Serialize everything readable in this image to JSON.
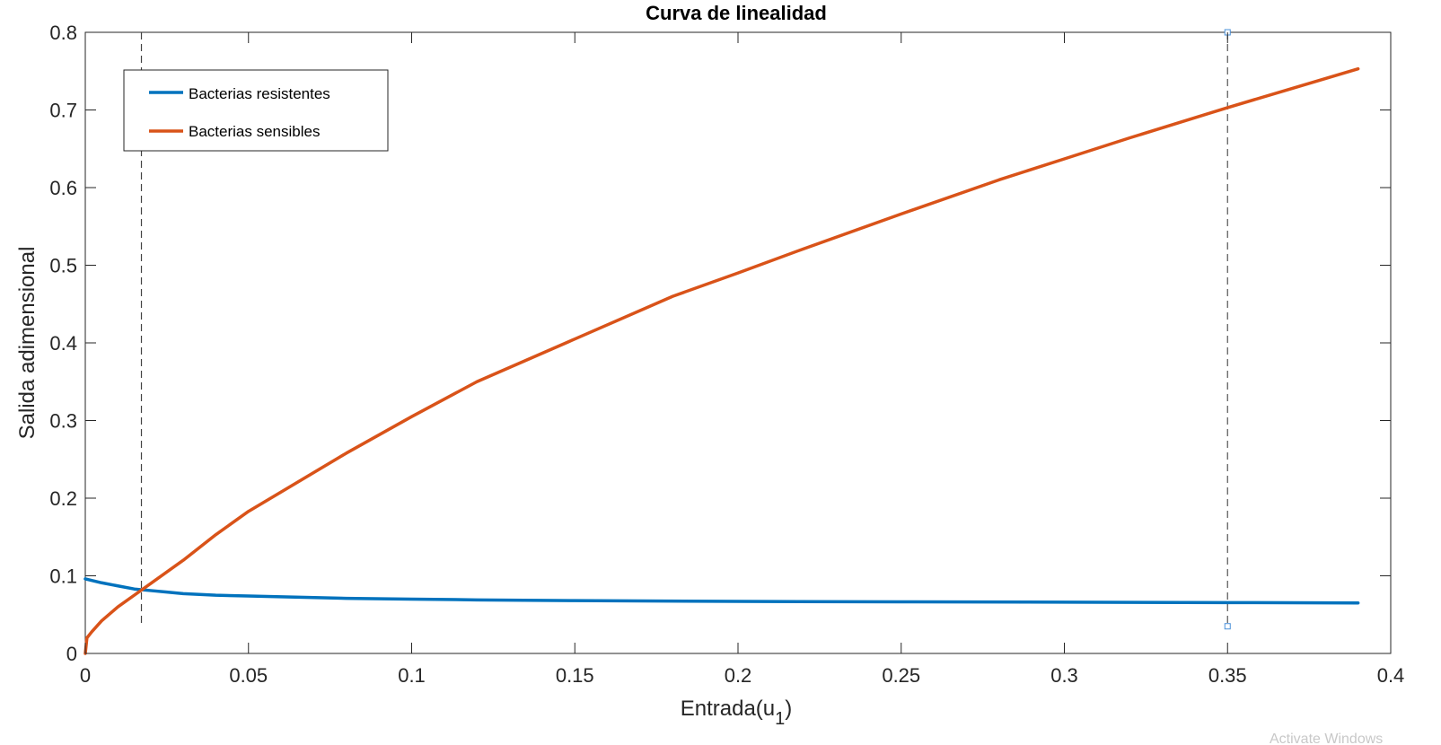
{
  "chart_data": {
    "type": "line",
    "title": "Curva de linealidad",
    "xlabel": "Entrada(u",
    "xlabel_subscript": "1",
    "xlabel_suffix": ")",
    "ylabel": "Salida adimensional",
    "xlim": [
      0,
      0.4
    ],
    "ylim": [
      0,
      0.8
    ],
    "xticks": [
      "0",
      "0.05",
      "0.1",
      "0.15",
      "0.2",
      "0.25",
      "0.3",
      "0.35",
      "0.4"
    ],
    "yticks": [
      "0",
      "0.1",
      "0.2",
      "0.3",
      "0.4",
      "0.5",
      "0.6",
      "0.7",
      "0.8"
    ],
    "grid": false,
    "legend_position": "top-left",
    "series": [
      {
        "name": "Bacterias resistentes",
        "color": "#0072BD",
        "x": [
          0,
          0.002,
          0.005,
          0.01,
          0.015,
          0.02,
          0.025,
          0.03,
          0.04,
          0.05,
          0.06,
          0.08,
          0.1,
          0.12,
          0.15,
          0.2,
          0.25,
          0.3,
          0.35,
          0.39
        ],
        "y": [
          0.096,
          0.094,
          0.091,
          0.087,
          0.083,
          0.081,
          0.079,
          0.077,
          0.075,
          0.074,
          0.073,
          0.071,
          0.07,
          0.069,
          0.068,
          0.067,
          0.0665,
          0.066,
          0.0655,
          0.065
        ]
      },
      {
        "name": "Bacterias sensibles",
        "color": "#D95319",
        "x": [
          0,
          0.0005,
          0.002,
          0.005,
          0.01,
          0.015,
          0.02,
          0.03,
          0.04,
          0.05,
          0.06,
          0.08,
          0.1,
          0.12,
          0.15,
          0.18,
          0.2,
          0.22,
          0.25,
          0.28,
          0.3,
          0.32,
          0.35,
          0.37,
          0.39
        ],
        "y": [
          0.0,
          0.02,
          0.028,
          0.042,
          0.06,
          0.075,
          0.09,
          0.12,
          0.153,
          0.183,
          0.208,
          0.258,
          0.305,
          0.35,
          0.405,
          0.46,
          0.49,
          0.521,
          0.566,
          0.61,
          0.637,
          0.664,
          0.703,
          0.728,
          0.753
        ]
      }
    ],
    "reference_lines": [
      {
        "x": 0.0172,
        "y_from": 0.035,
        "y_to": 0.8,
        "color": "#444444"
      },
      {
        "x": 0.35,
        "y_from": 0.035,
        "y_to": 0.8,
        "color": "#555555"
      }
    ],
    "watermark": "Activate Windows"
  }
}
